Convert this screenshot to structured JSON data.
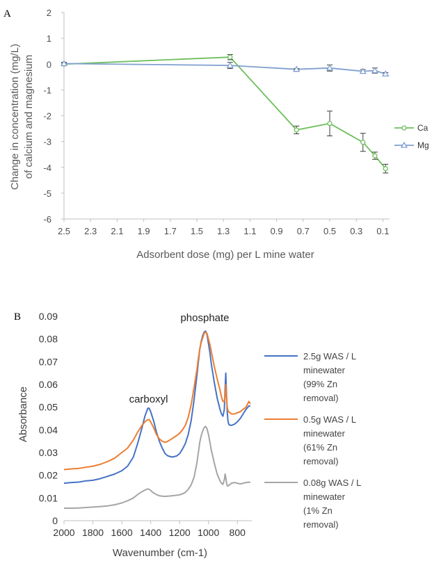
{
  "chart_data": [
    {
      "panel": "A",
      "type": "line",
      "ylabel_lines": [
        "Change in concentration  (mg/L)",
        "of calcium and magnesium"
      ],
      "xlabel": "Adsorbent dose (mg) per L mine water",
      "xlim": [
        2.5,
        0.05
      ],
      "ylim": [
        -6,
        2
      ],
      "x_ticks": [
        "2.5",
        "2.3",
        "2.1",
        "1.9",
        "1.7",
        "1.5",
        "1.3",
        "1.1",
        "0.9",
        "0.7",
        "0.5",
        "0.3",
        "0.1"
      ],
      "y_ticks": [
        "2",
        "1",
        "0",
        "-1",
        "-2",
        "-3",
        "-4",
        "-5",
        "-6"
      ],
      "legend_position": "right",
      "series": [
        {
          "name": "Ca",
          "color": "#6dbf5b",
          "marker": "circle",
          "x": [
            2.5,
            1.25,
            0.75,
            0.5,
            0.25,
            0.16,
            0.08
          ],
          "y": [
            0.0,
            0.27,
            -2.55,
            -2.3,
            -3.03,
            -3.55,
            -4.05
          ],
          "error": [
            0.05,
            0.1,
            0.15,
            0.48,
            0.35,
            0.14,
            0.17
          ]
        },
        {
          "name": "Mg",
          "color": "#7f9fcf",
          "marker": "triangle",
          "x": [
            2.5,
            1.25,
            0.75,
            0.5,
            0.25,
            0.16,
            0.08
          ],
          "y": [
            0.02,
            -0.05,
            -0.2,
            -0.15,
            -0.28,
            -0.25,
            -0.38
          ],
          "error": [
            0.05,
            0.12,
            0.03,
            0.12,
            0.07,
            0.1,
            0.05
          ]
        }
      ]
    },
    {
      "panel": "B",
      "type": "line",
      "xlabel": "Wavenumber (cm-1)",
      "ylabel": "Absorbance",
      "xlim": [
        2000,
        700
      ],
      "ylim": [
        0,
        0.09
      ],
      "x_ticks": [
        "2000",
        "1800",
        "1600",
        "1400",
        "1200",
        "1000",
        "800"
      ],
      "y_ticks": [
        "0.09",
        "0.08",
        "0.07",
        "0.06",
        "0.05",
        "0.04",
        "0.03",
        "0.02",
        "0.01",
        "0"
      ],
      "annotations": [
        {
          "text": "carboxyl",
          "x": 1415,
          "y": 0.052
        },
        {
          "text": "phosphate",
          "x": 1025,
          "y": 0.086
        }
      ],
      "legend_position": "right",
      "series": [
        {
          "name_lines": [
            "2.5g WAS / L",
            "minewater",
            "(99% Zn",
            "removal)"
          ],
          "color": "#4472c4",
          "x": [
            2000,
            1950,
            1900,
            1850,
            1800,
            1750,
            1700,
            1650,
            1600,
            1560,
            1520,
            1490,
            1460,
            1440,
            1420,
            1410,
            1400,
            1380,
            1360,
            1340,
            1320,
            1300,
            1280,
            1250,
            1220,
            1200,
            1180,
            1160,
            1140,
            1120,
            1100,
            1080,
            1070,
            1060,
            1050,
            1040,
            1030,
            1020,
            1010,
            1000,
            990,
            980,
            960,
            940,
            920,
            910,
            900,
            890,
            885,
            880,
            875,
            870,
            865,
            860,
            850,
            840,
            820,
            800,
            780,
            760,
            740,
            720,
            710
          ],
          "y": [
            0.0165,
            0.0168,
            0.017,
            0.0175,
            0.0178,
            0.0185,
            0.0195,
            0.0205,
            0.022,
            0.024,
            0.028,
            0.034,
            0.041,
            0.046,
            0.0495,
            0.0495,
            0.048,
            0.044,
            0.039,
            0.035,
            0.032,
            0.0295,
            0.0285,
            0.028,
            0.0285,
            0.0295,
            0.0315,
            0.034,
            0.038,
            0.044,
            0.053,
            0.064,
            0.07,
            0.0755,
            0.079,
            0.0815,
            0.083,
            0.0835,
            0.082,
            0.078,
            0.074,
            0.069,
            0.061,
            0.054,
            0.049,
            0.047,
            0.046,
            0.049,
            0.058,
            0.065,
            0.055,
            0.048,
            0.044,
            0.0425,
            0.042,
            0.042,
            0.0425,
            0.0435,
            0.045,
            0.047,
            0.049,
            0.0505,
            0.0505
          ]
        },
        {
          "name_lines": [
            "0.5g WAS / L",
            "minewater",
            "(61% Zn",
            "removal)"
          ],
          "color": "#ed7d31",
          "x": [
            2000,
            1950,
            1900,
            1850,
            1800,
            1750,
            1700,
            1650,
            1600,
            1560,
            1520,
            1490,
            1460,
            1440,
            1420,
            1410,
            1400,
            1380,
            1360,
            1340,
            1320,
            1300,
            1280,
            1250,
            1220,
            1200,
            1180,
            1160,
            1140,
            1120,
            1100,
            1080,
            1070,
            1060,
            1050,
            1040,
            1030,
            1020,
            1010,
            1000,
            990,
            980,
            960,
            940,
            920,
            910,
            900,
            890,
            885,
            880,
            875,
            870,
            865,
            860,
            850,
            840,
            820,
            800,
            780,
            760,
            740,
            720,
            710
          ],
          "y": [
            0.0225,
            0.0228,
            0.023,
            0.0235,
            0.024,
            0.0248,
            0.026,
            0.0275,
            0.03,
            0.032,
            0.0355,
            0.039,
            0.042,
            0.0435,
            0.0445,
            0.0445,
            0.0435,
            0.041,
            0.038,
            0.036,
            0.035,
            0.0345,
            0.035,
            0.0362,
            0.0375,
            0.0385,
            0.04,
            0.042,
            0.0455,
            0.051,
            0.0585,
            0.0665,
            0.0715,
            0.0755,
            0.0785,
            0.0805,
            0.0825,
            0.083,
            0.0825,
            0.08,
            0.0775,
            0.0745,
            0.068,
            0.0625,
            0.0575,
            0.0545,
            0.0525,
            0.0525,
            0.055,
            0.06,
            0.0535,
            0.05,
            0.0485,
            0.048,
            0.0475,
            0.047,
            0.047,
            0.0475,
            0.048,
            0.049,
            0.05,
            0.0525,
            0.0515
          ]
        },
        {
          "name_lines": [
            "0.08g WAS / L",
            "minewater",
            "(1% Zn",
            "removal)"
          ],
          "color": "#a5a5a5",
          "x": [
            2000,
            1950,
            1900,
            1850,
            1800,
            1750,
            1700,
            1650,
            1600,
            1560,
            1520,
            1490,
            1460,
            1440,
            1420,
            1410,
            1400,
            1380,
            1360,
            1340,
            1320,
            1300,
            1280,
            1250,
            1220,
            1200,
            1180,
            1160,
            1140,
            1120,
            1100,
            1080,
            1070,
            1060,
            1050,
            1040,
            1030,
            1020,
            1010,
            1000,
            990,
            980,
            960,
            940,
            920,
            910,
            900,
            890,
            885,
            880,
            875,
            870,
            865,
            860,
            850,
            840,
            820,
            800,
            780,
            760,
            740,
            720,
            710
          ],
          "y": [
            0.0055,
            0.0055,
            0.0056,
            0.0058,
            0.006,
            0.0062,
            0.0065,
            0.007,
            0.0078,
            0.0088,
            0.01,
            0.0115,
            0.0128,
            0.0135,
            0.014,
            0.0138,
            0.0133,
            0.0122,
            0.0115,
            0.011,
            0.0108,
            0.0107,
            0.0108,
            0.011,
            0.0112,
            0.0114,
            0.0118,
            0.0125,
            0.0138,
            0.0158,
            0.019,
            0.0255,
            0.03,
            0.0345,
            0.0375,
            0.0395,
            0.041,
            0.0415,
            0.0405,
            0.038,
            0.0345,
            0.031,
            0.0255,
            0.0205,
            0.0175,
            0.0165,
            0.016,
            0.018,
            0.0205,
            0.019,
            0.0165,
            0.0155,
            0.0152,
            0.0155,
            0.016,
            0.0165,
            0.0168,
            0.0165,
            0.0162,
            0.0165,
            0.0168,
            0.017,
            0.0168
          ]
        }
      ]
    }
  ]
}
